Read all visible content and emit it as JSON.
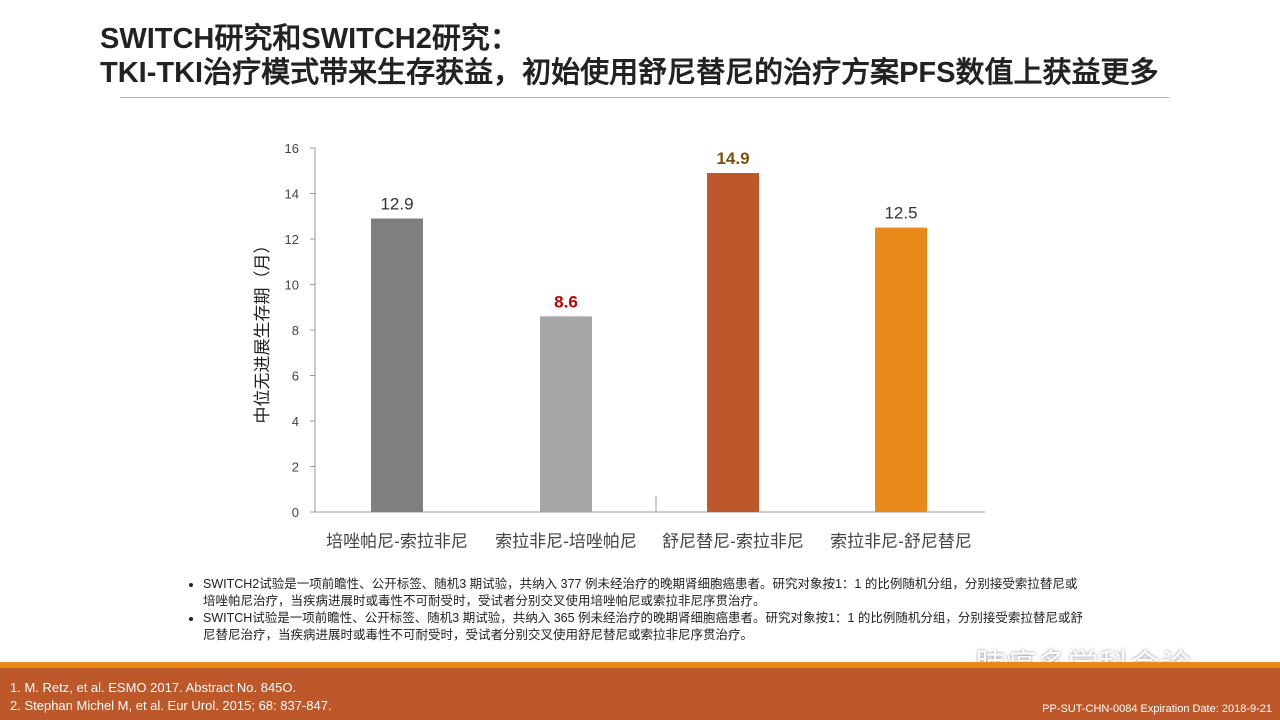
{
  "title": {
    "line1": "SWITCH研究和SWITCH2研究：",
    "line2": "TKI-TKI治疗模式带来生存获益，初始使用舒尼替尼的治疗方案PFS数值上获益更多"
  },
  "chart_data": {
    "type": "bar",
    "categories": [
      "培唑帕尼-索拉非尼",
      "索拉非尼-培唑帕尼",
      "舒尼替尼-索拉非尼",
      "索拉非尼-舒尼替尼"
    ],
    "values": [
      12.9,
      8.6,
      14.9,
      12.5
    ],
    "value_labels": [
      "12.9",
      "8.6",
      "14.9",
      "12.5"
    ],
    "bar_colors": [
      "#7f7f80",
      "#a6a6a8",
      "#bd582b",
      "#e8891a"
    ],
    "label_colors": [
      "#333333",
      "#c00000",
      "#7f4f0f",
      "#333333"
    ],
    "label_bold": [
      false,
      true,
      true,
      false
    ],
    "ylabel": "中位无进展生存期（月）",
    "ylim": [
      0,
      16
    ],
    "yticks": [
      0,
      2,
      4,
      6,
      8,
      10,
      12,
      14,
      16
    ],
    "grid": false
  },
  "notes": [
    "SWITCH2试验是一项前瞻性、公开标签、随机3 期试验，共纳入 377 例未经治疗的晚期肾细胞癌患者。研究对象按1：1 的比例随机分组，分别接受索拉替尼或培唑帕尼治疗，当疾病进展时或毒性不可耐受时，受试者分别交叉使用培唑帕尼或索拉非尼序贯治疗。",
    "SWITCH试验是一项前瞻性、公开标签、随机3 期试验，共纳入 365 例未经治疗的晚期肾细胞癌患者。研究对象按1：1 的比例随机分组，分别接受索拉替尼或舒尼替尼治疗，当疾病进展时或毒性不可耐受时，受试者分别交叉使用舒尼替尼或索拉非尼序贯治疗。"
  ],
  "watermark": "肺癌多学科会诊",
  "references": [
    "1. M. Retz, et al. ESMO 2017. Abstract No. 845O.",
    "2. Stephan Michel M, et al. Eur Urol. 2015; 68: 837-847."
  ],
  "footer_code": "PP-SUT-CHN-0084 Expiration Date: 2018-9-21"
}
